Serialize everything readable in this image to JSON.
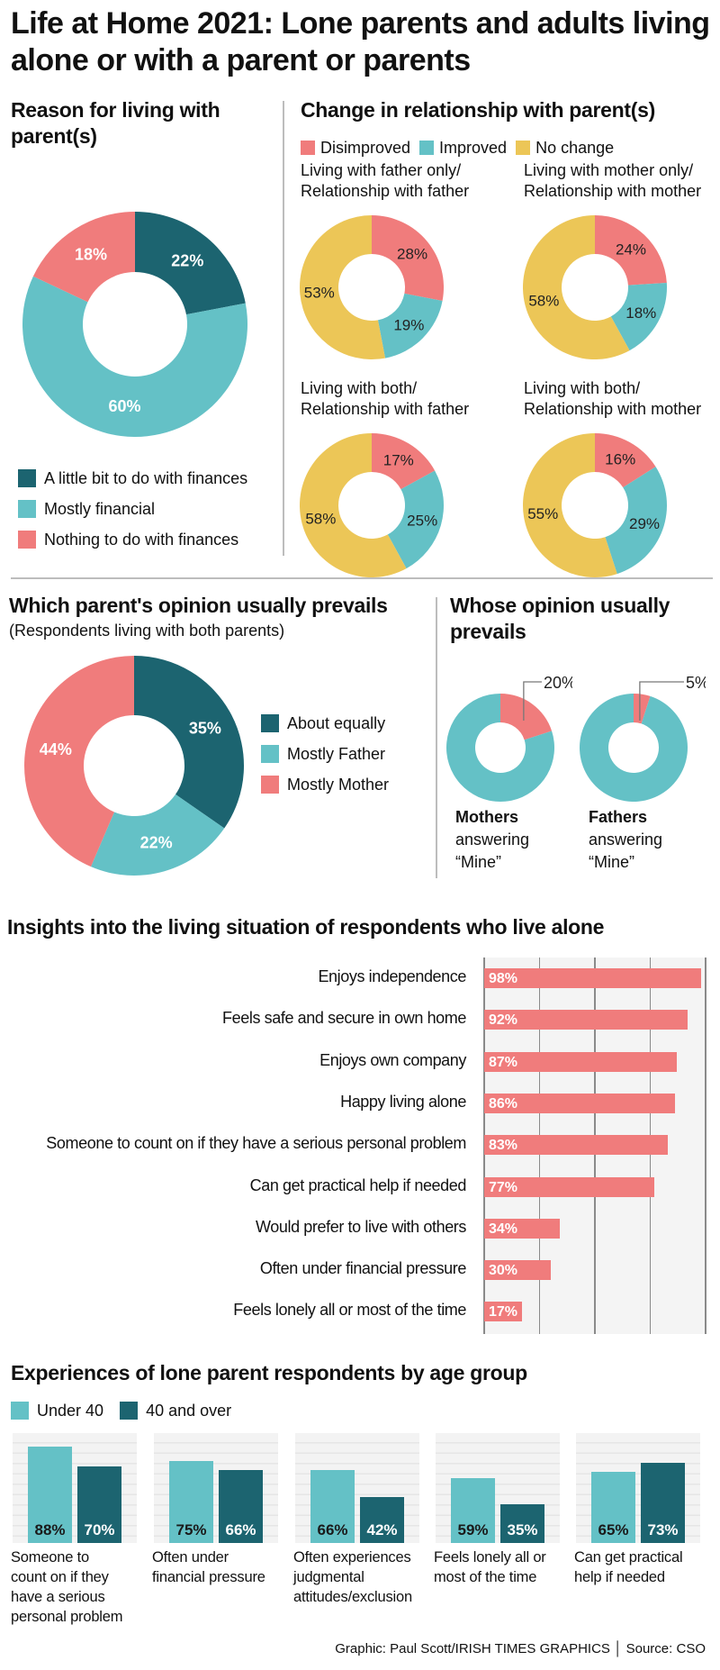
{
  "title": "Life at Home 2021: Lone parents and adults living alone or with a parent or parents",
  "colors": {
    "dark_teal": "#1c6470",
    "teal": "#64c1c6",
    "pink": "#f07c7c",
    "yellow": "#ecc657",
    "grid_bg": "#f4f4f4",
    "divider": "#bdbdbd"
  },
  "sections": {
    "reason": {
      "title": "Reason for living with parent(s)"
    },
    "change": {
      "title": "Change in relationship with parent(s)",
      "legend": [
        "Disimproved",
        "Improved",
        "No change"
      ],
      "charts": [
        {
          "caption_line1": "Living with father only/",
          "caption_line2": "Relationship with father"
        },
        {
          "caption_line1": "Living with mother only/",
          "caption_line2": "Relationship with mother"
        },
        {
          "caption_line1": "Living with both/",
          "caption_line2": "Relationship with father"
        },
        {
          "caption_line1": "Living with both/",
          "caption_line2": "Relationship with mother"
        }
      ]
    },
    "which_parent": {
      "title": "Which parent's opinion usually prevails",
      "subtitle": "(Respondents living with both parents)"
    },
    "whose": {
      "title_line1": "Whose opinion usually",
      "title_line2": "prevails",
      "charts": [
        {
          "bold": "Mothers",
          "line2": "answering",
          "line3": "“Mine”"
        },
        {
          "bold": "Fathers",
          "line2": "answering",
          "line3": "“Mine”"
        }
      ]
    },
    "alone": {
      "title": "Insights into the living situation of respondents who live alone"
    },
    "lone_parent": {
      "title": "Experiences of lone parent respondents by age group",
      "legend": [
        "Under 40",
        "40 and over"
      ]
    }
  },
  "credit": "Graphic: Paul Scott/IRISH TIMES GRAPHICS │ Source: CSO",
  "chart_data": [
    {
      "id": "reason",
      "type": "pie",
      "title": "Reason for living with parent(s)",
      "categories": [
        "A little bit to do with finances",
        "Mostly financial",
        "Nothing to do with finances"
      ],
      "values": [
        22,
        60,
        18
      ],
      "labels": [
        "22%",
        "60%",
        "18%"
      ],
      "colors": [
        "#1c6470",
        "#64c1c6",
        "#f07c7c"
      ],
      "legend": "bottom"
    },
    {
      "id": "change",
      "type": "pie",
      "title": "Change in relationship with parent(s)",
      "categories": [
        "Disimproved",
        "Improved",
        "No change"
      ],
      "colors": [
        "#f07c7c",
        "#64c1c6",
        "#ecc657"
      ],
      "series": [
        {
          "name": "Living with father only/Relationship with father",
          "values": [
            28,
            19,
            53
          ]
        },
        {
          "name": "Living with mother only/Relationship with mother",
          "values": [
            24,
            18,
            58
          ]
        },
        {
          "name": "Living with both/Relationship with father",
          "values": [
            17,
            25,
            58
          ]
        },
        {
          "name": "Living with both/Relationship with mother",
          "values": [
            16,
            29,
            55
          ]
        }
      ],
      "legend": "top"
    },
    {
      "id": "which_parent",
      "type": "pie",
      "title": "Which parent's opinion usually prevails",
      "subtitle": "(Respondents living with both parents)",
      "categories": [
        "About equally",
        "Mostly Father",
        "Mostly Mother"
      ],
      "values": [
        35,
        22,
        44
      ],
      "labels": [
        "35%",
        "22%",
        "44%"
      ],
      "colors": [
        "#1c6470",
        "#64c1c6",
        "#f07c7c"
      ],
      "legend": "right"
    },
    {
      "id": "whose",
      "type": "pie",
      "title": "Whose opinion usually prevails",
      "series": [
        {
          "name": "Mothers answering “Mine”",
          "values": [
            20,
            80
          ],
          "label": "20%"
        },
        {
          "name": "Fathers answering “Mine”",
          "values": [
            5,
            95
          ],
          "label": "5%"
        }
      ],
      "colors": [
        "#f07c7c",
        "#64c1c6"
      ]
    },
    {
      "id": "alone",
      "type": "bar",
      "orientation": "horizontal",
      "title": "Insights into the living situation of respondents who live alone",
      "categories": [
        "Enjoys independence",
        "Feels safe and secure in own home",
        "Enjoys own company",
        "Happy living alone",
        "Someone to count on if they have a serious personal problem",
        "Can get practical help if needed",
        "Would prefer to live with others",
        "Often under financial pressure",
        "Feels lonely all or most of the time"
      ],
      "values": [
        98,
        92,
        87,
        86,
        83,
        77,
        34,
        30,
        17
      ],
      "labels": [
        "98%",
        "92%",
        "87%",
        "86%",
        "83%",
        "77%",
        "34%",
        "30%",
        "17%"
      ],
      "xlim": [
        0,
        100
      ],
      "grid": true,
      "color": "#f07c7c"
    },
    {
      "id": "lone_parent",
      "type": "bar",
      "title": "Experiences of lone parent respondents by age group",
      "categories": [
        "Someone to count on if they have a serious personal problem",
        "Often under financial pressure",
        "Often experiences judgmental attitudes/exclusion",
        "Feels lonely all or most of the time",
        "Can get practical help if needed"
      ],
      "category_lines": [
        [
          "Someone to",
          "count on if they",
          "have a serious",
          "personal problem"
        ],
        [
          "Often under",
          "financial pressure"
        ],
        [
          "Often experiences",
          "judgmental",
          "attitudes/exclusion"
        ],
        [
          "Feels lonely all or",
          "most of the time"
        ],
        [
          "Can get practical",
          "help if needed"
        ]
      ],
      "series": [
        {
          "name": "Under 40",
          "values": [
            88,
            75,
            66,
            59,
            65
          ],
          "labels": [
            "88%",
            "75%",
            "66%",
            "59%",
            "65%"
          ],
          "color": "#64c1c6"
        },
        {
          "name": "40 and over",
          "values": [
            70,
            66,
            42,
            35,
            73
          ],
          "labels": [
            "70%",
            "66%",
            "42%",
            "35%",
            "73%"
          ],
          "color": "#1c6470"
        }
      ],
      "ylim": [
        0,
        100
      ],
      "grid": true,
      "legend": "top-left"
    }
  ]
}
